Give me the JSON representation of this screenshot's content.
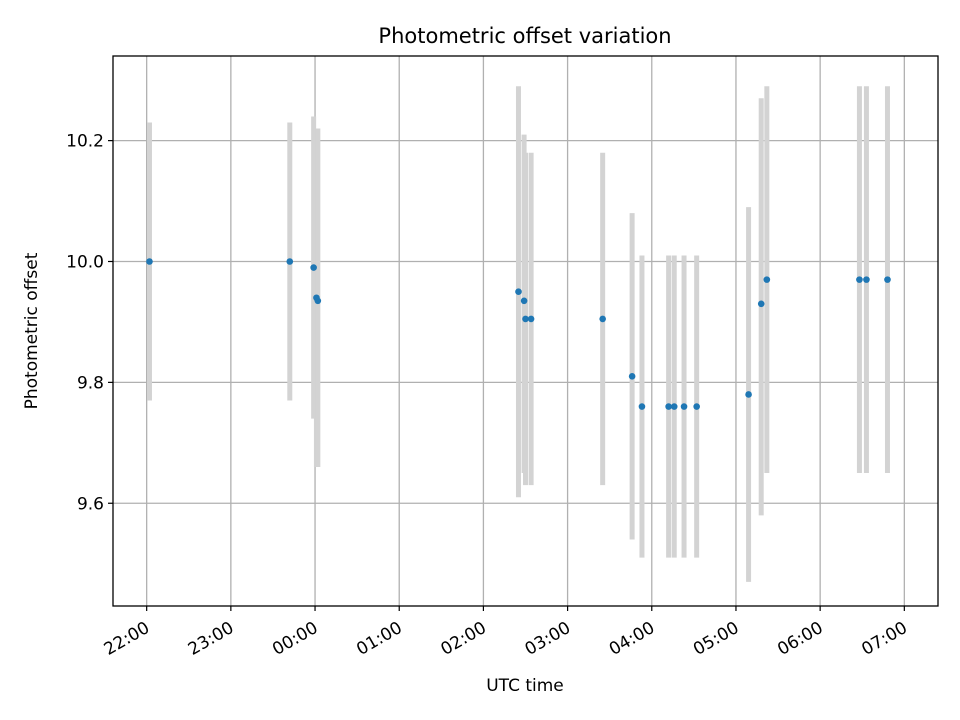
{
  "chart_data": {
    "type": "scatter",
    "title": "Photometric offset variation",
    "xlabel": "UTC time",
    "ylabel": "Photometric offset",
    "x_axis_type": "time",
    "xlim": [
      "21:36",
      "07:24"
    ],
    "ylim": [
      9.43,
      10.34
    ],
    "x_tick_labels": [
      "22:00",
      "23:00",
      "00:00",
      "01:00",
      "02:00",
      "03:00",
      "04:00",
      "05:00",
      "06:00",
      "07:00"
    ],
    "y_ticks": [
      9.6,
      9.8,
      10.0,
      10.2
    ],
    "y_tick_labels": [
      "9.6",
      "9.8",
      "10.0",
      "10.2"
    ],
    "grid": true,
    "marker_color": "#1f77b4",
    "errorbar_color": "#d3d3d3",
    "points": [
      {
        "x": "22:02",
        "y": 10.0,
        "ylo": 9.77,
        "yhi": 10.23
      },
      {
        "x": "23:42",
        "y": 10.0,
        "ylo": 9.77,
        "yhi": 10.23
      },
      {
        "x": "23:59",
        "y": 9.99,
        "ylo": 9.74,
        "yhi": 10.24
      },
      {
        "x": "00:01",
        "y": 9.94,
        "ylo": 9.66,
        "yhi": 10.22
      },
      {
        "x": "00:02",
        "y": 9.935,
        "ylo": 9.66,
        "yhi": 10.22
      },
      {
        "x": "02:25",
        "y": 9.95,
        "ylo": 9.61,
        "yhi": 10.29
      },
      {
        "x": "02:29",
        "y": 9.935,
        "ylo": 9.65,
        "yhi": 10.21
      },
      {
        "x": "02:30",
        "y": 9.905,
        "ylo": 9.63,
        "yhi": 10.18
      },
      {
        "x": "02:34",
        "y": 9.905,
        "ylo": 9.63,
        "yhi": 10.18
      },
      {
        "x": "03:25",
        "y": 9.905,
        "ylo": 9.63,
        "yhi": 10.18
      },
      {
        "x": "03:46",
        "y": 9.81,
        "ylo": 9.54,
        "yhi": 10.08
      },
      {
        "x": "03:53",
        "y": 9.76,
        "ylo": 9.51,
        "yhi": 10.01
      },
      {
        "x": "04:12",
        "y": 9.76,
        "ylo": 9.51,
        "yhi": 10.01
      },
      {
        "x": "04:16",
        "y": 9.76,
        "ylo": 9.51,
        "yhi": 10.01
      },
      {
        "x": "04:23",
        "y": 9.76,
        "ylo": 9.51,
        "yhi": 10.01
      },
      {
        "x": "04:32",
        "y": 9.76,
        "ylo": 9.51,
        "yhi": 10.01
      },
      {
        "x": "05:09",
        "y": 9.78,
        "ylo": 9.47,
        "yhi": 10.09
      },
      {
        "x": "05:18",
        "y": 9.93,
        "ylo": 9.58,
        "yhi": 10.27
      },
      {
        "x": "05:22",
        "y": 9.97,
        "ylo": 9.65,
        "yhi": 10.29
      },
      {
        "x": "06:28",
        "y": 9.97,
        "ylo": 9.65,
        "yhi": 10.29
      },
      {
        "x": "06:33",
        "y": 9.97,
        "ylo": 9.65,
        "yhi": 10.29
      },
      {
        "x": "06:48",
        "y": 9.97,
        "ylo": 9.65,
        "yhi": 10.29
      }
    ]
  }
}
